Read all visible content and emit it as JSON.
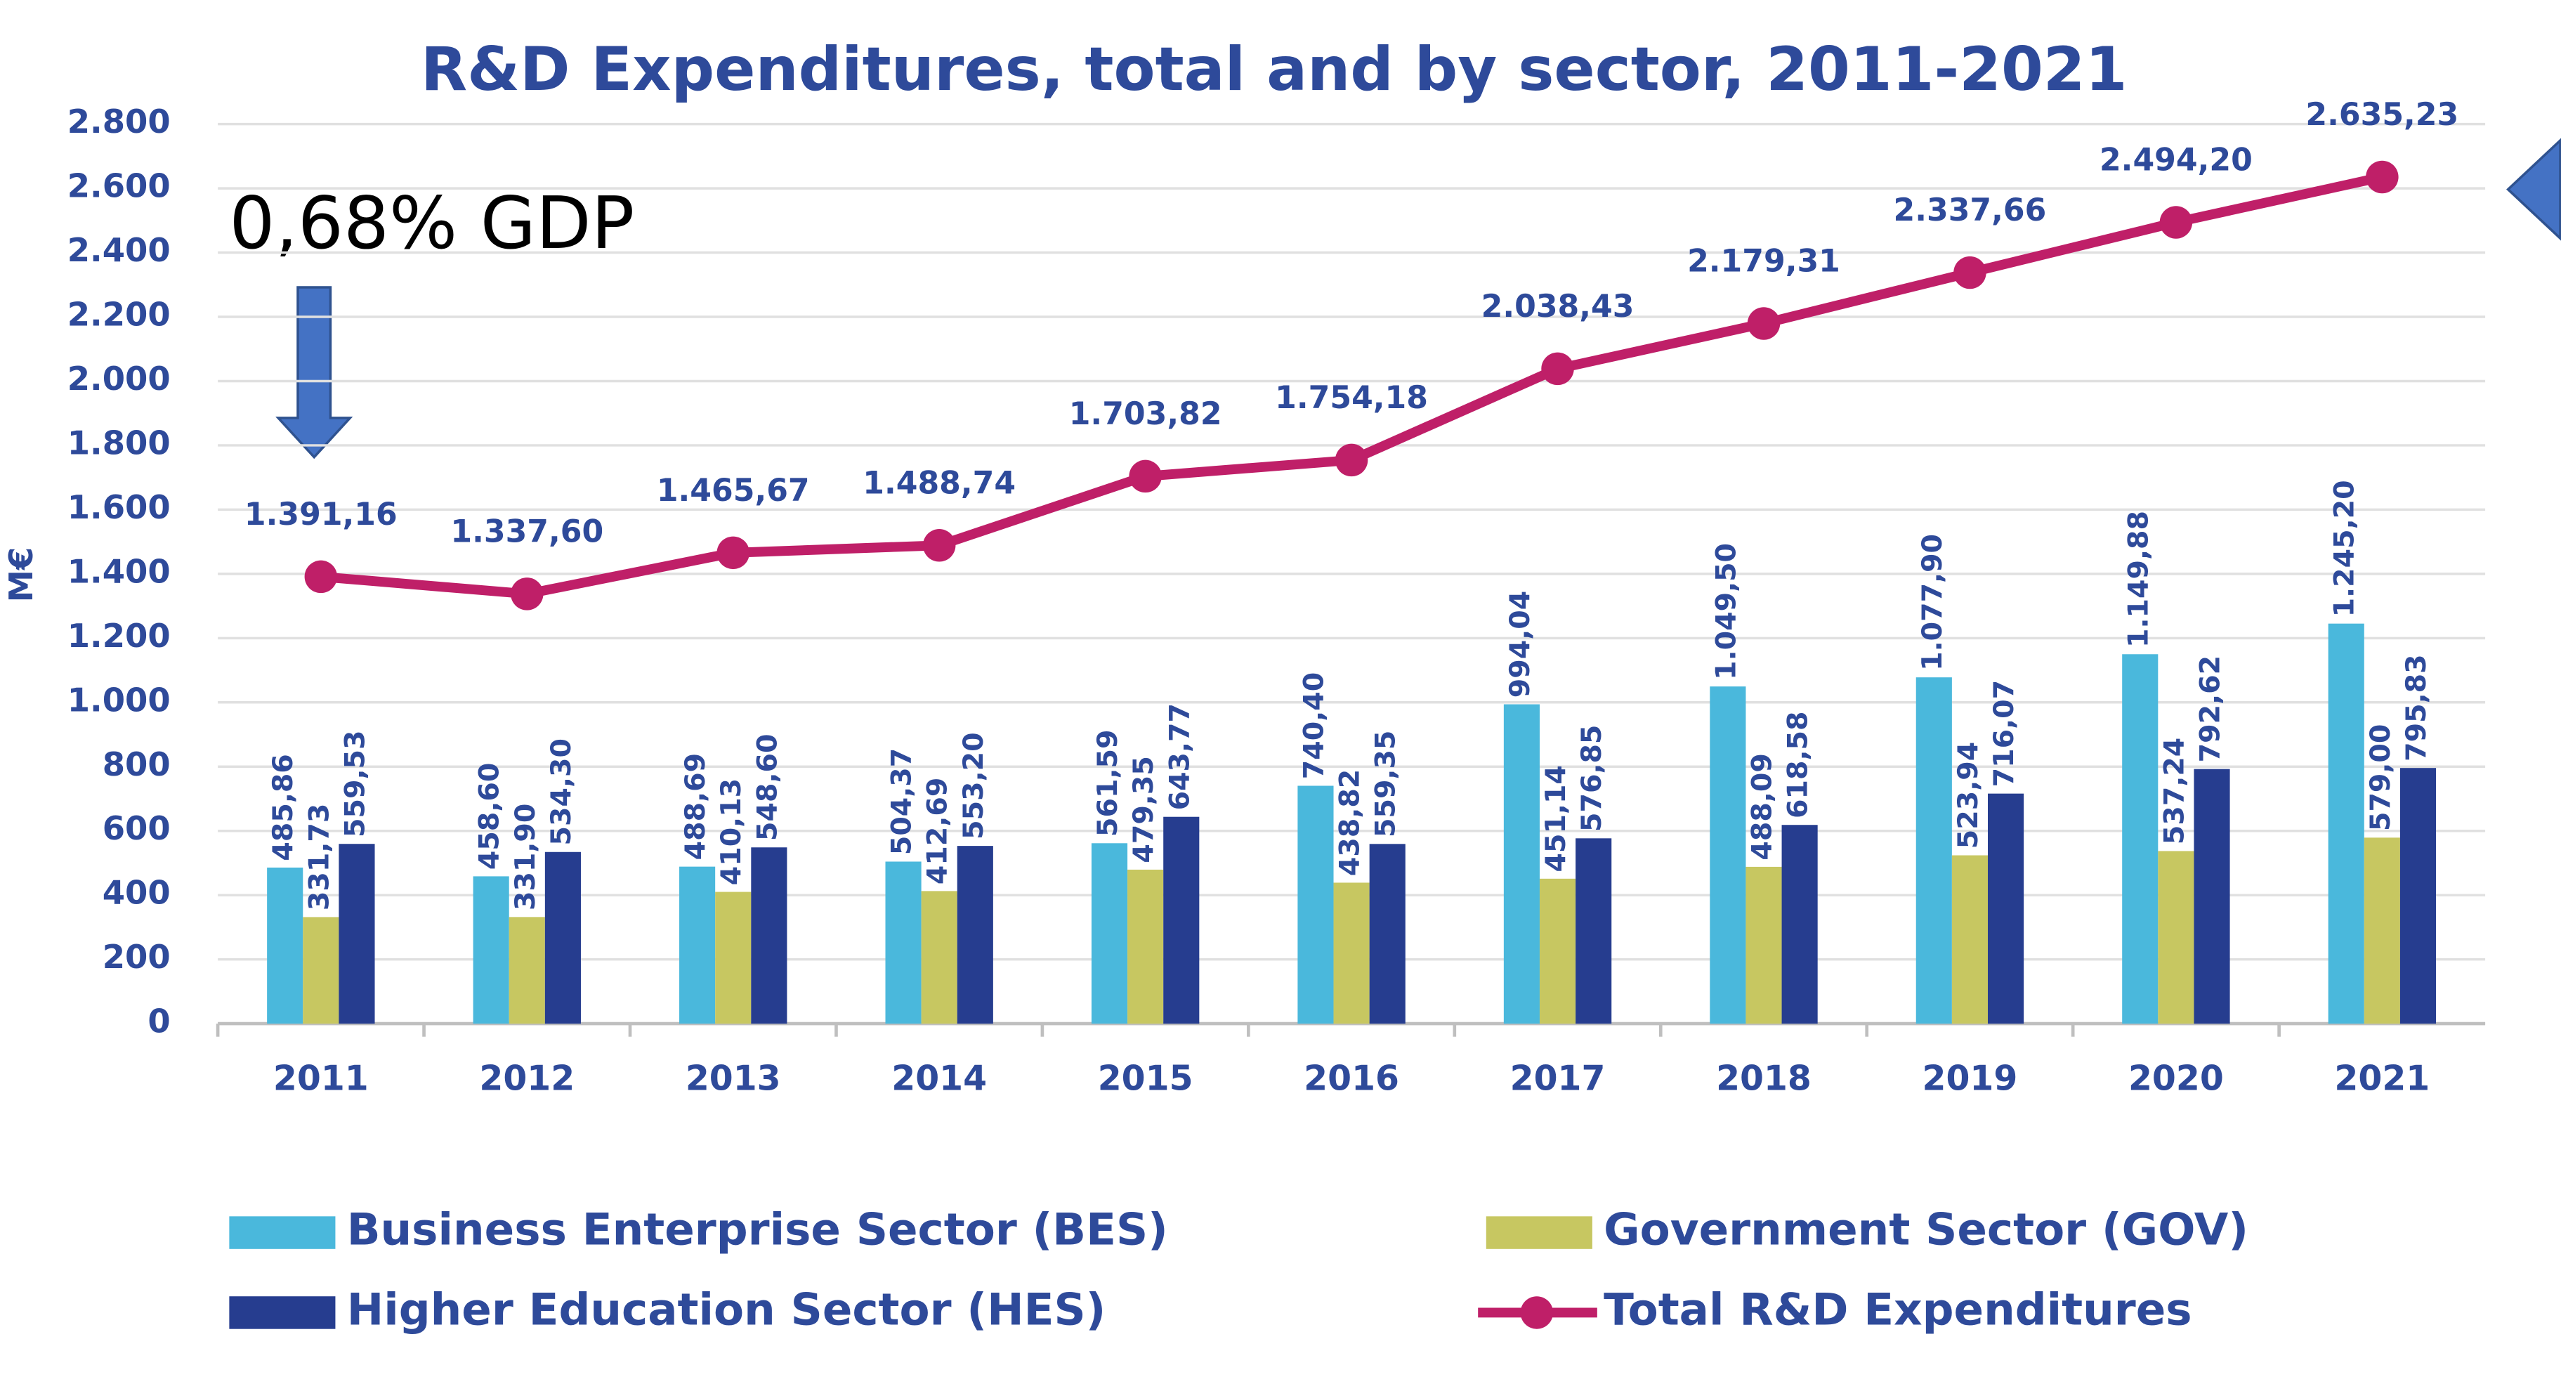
{
  "chart_data": {
    "type": "bar_line",
    "title": "R&D Expenditures, total and by sector, 2011-2021",
    "y_label": "M€",
    "annotation": "0,68% GDP",
    "categories": [
      "2011",
      "2012",
      "2013",
      "2014",
      "2015",
      "2016",
      "2017",
      "2018",
      "2019",
      "2020",
      "2021"
    ],
    "series": [
      {
        "name": "Business Enterprise Sector (BES)",
        "type": "bar",
        "color": "#4ab8dc",
        "values": [
          485.86,
          458.6,
          488.69,
          504.37,
          561.59,
          740.4,
          994.04,
          1049.5,
          1077.9,
          1149.88,
          1245.2
        ],
        "value_labels": [
          "485,86",
          "458,60",
          "488,69",
          "504,37",
          "561,59",
          "740,40",
          "994,04",
          "1.049,50",
          "1.077,90",
          "1.149,88",
          "1.245,20"
        ]
      },
      {
        "name": "Government Sector (GOV)",
        "type": "bar",
        "color": "#c7c761",
        "values": [
          331.73,
          331.9,
          410.13,
          412.69,
          479.35,
          438.82,
          451.14,
          488.09,
          523.94,
          537.24,
          579.0
        ],
        "value_labels": [
          "331,73",
          "331,90",
          "410,13",
          "412,69",
          "479,35",
          "438,82",
          "451,14",
          "488,09",
          "523,94",
          "537,24",
          "579,00"
        ]
      },
      {
        "name": "Higher Education Sector (HES)",
        "type": "bar",
        "color": "#263d8f",
        "values": [
          559.53,
          534.3,
          548.6,
          553.2,
          643.77,
          559.35,
          576.85,
          618.58,
          716.07,
          792.62,
          795.83
        ],
        "value_labels": [
          "559,53",
          "534,30",
          "548,60",
          "553,20",
          "643,77",
          "559,35",
          "576,85",
          "618,58",
          "716,07",
          "792,62",
          "795,83"
        ]
      },
      {
        "name": "Total R&D Expenditures",
        "type": "line",
        "color": "#bf1f68",
        "values": [
          1391.16,
          1337.6,
          1465.67,
          1488.74,
          1703.82,
          1754.18,
          2038.43,
          2179.31,
          2337.66,
          2494.2,
          2635.23
        ],
        "value_labels": [
          "1.391,16",
          "1.337,60",
          "1.465,67",
          "1.488,74",
          "1.703,82",
          "1.754,18",
          "2.038,43",
          "2.179,31",
          "2.337,66",
          "2.494,20",
          "2.635,23"
        ]
      }
    ],
    "ylim": [
      0,
      2800
    ],
    "yticks": [
      0,
      200,
      400,
      600,
      800,
      {
        "value": 1000,
        "label": "1.000"
      },
      {
        "value": 1200,
        "label": "1.200"
      },
      {
        "value": 1400,
        "label": "1.400"
      },
      {
        "value": 1600,
        "label": "1.600"
      },
      {
        "value": 1800,
        "label": "1.800"
      },
      {
        "value": 2000,
        "label": "2.000"
      },
      {
        "value": 2200,
        "label": "2.200"
      },
      {
        "value": 2400,
        "label": "2.400"
      },
      {
        "value": 2600,
        "label": "2.600"
      },
      {
        "value": 2800,
        "label": "2.800"
      }
    ],
    "grid": true,
    "legend": "bottom"
  }
}
